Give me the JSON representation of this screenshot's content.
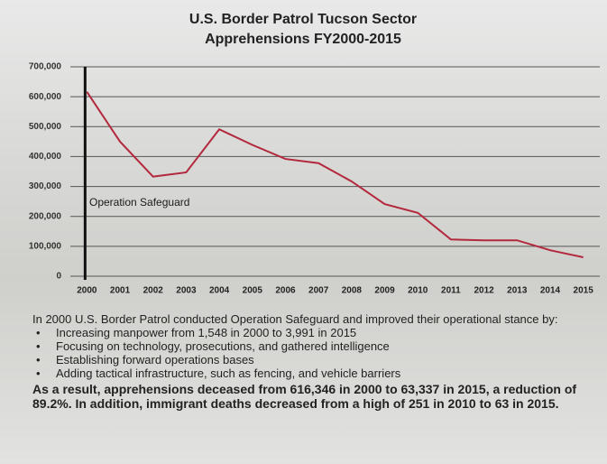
{
  "chart_data": {
    "type": "line",
    "title": "U.S. Border Patrol Tucson Sector",
    "subtitle": "Apprehensions FY2000-2015",
    "categories": [
      "2000",
      "2001",
      "2002",
      "2003",
      "2004",
      "2005",
      "2006",
      "2007",
      "2008",
      "2009",
      "2010",
      "2011",
      "2012",
      "2013",
      "2014",
      "2015"
    ],
    "series": [
      {
        "name": "Apprehensions",
        "color": "#b3283c",
        "values": [
          616346,
          450000,
          333000,
          347000,
          491000,
          439000,
          392000,
          378000,
          317000,
          241000,
          212000,
          123000,
          120000,
          120000,
          87000,
          63337
        ]
      }
    ],
    "ylim": [
      0,
      700000
    ],
    "yticks": [
      0,
      {
        "value": 100000,
        "label": "100,000"
      },
      {
        "value": 200000,
        "label": "200,000"
      },
      {
        "value": 300000,
        "label": "300,000"
      },
      {
        "value": 400000,
        "label": "400,000"
      },
      {
        "value": 500000,
        "label": "500,000"
      },
      {
        "value": 600000,
        "label": "600,000"
      },
      {
        "value": 700000,
        "label": "700,000"
      }
    ],
    "grid": true,
    "annotation": "Operation Safeguard"
  },
  "notes": {
    "intro": "In 2000 U.S. Border Patrol conducted Operation Safeguard and improved their operational stance by:",
    "bullets": [
      "Increasing manpower from 1,548 in 2000 to 3,991 in 2015",
      "Focusing on technology, prosecutions, and gathered intelligence",
      "Establishing forward operations bases",
      "Adding tactical infrastructure, such as fencing, and vehicle barriers"
    ],
    "conclusion": "As a result, apprehensions deceased from 616,346 in 2000 to 63,337 in 2015, a reduction of 89.2%.  In addition, immigrant deaths decreased from a high of 251 in 2010 to 63 in 2015."
  }
}
